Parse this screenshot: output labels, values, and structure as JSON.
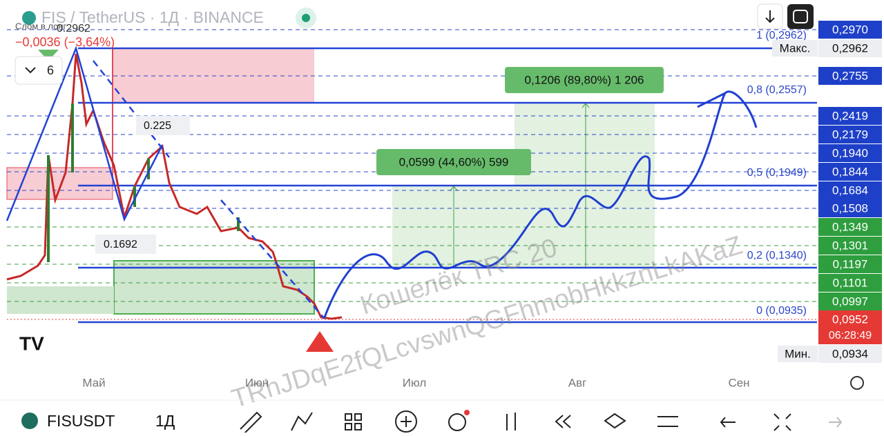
{
  "header": {
    "symbol": "FIS / TetherUS · 1Д · BINANCE",
    "note": "Слом в лонг",
    "high_label": "0.2962",
    "change": "−0,0036 (−3,64%)",
    "indicator_count": "6"
  },
  "annotations": [
    "0.225",
    "0.1692"
  ],
  "fib_levels": [
    "1 (0,2962)",
    "0,8 (0,2557)",
    "0,5 (0,1949)",
    "0,2 (0,1340)",
    "0 (0,0935)"
  ],
  "measures": [
    "0,1206 (89,80%) 1 206",
    "0,0599 (44,60%) 599"
  ],
  "price_scale": [
    "0,2970",
    "0,2755",
    "0,2419",
    "0,2179",
    "0,1940",
    "0,1844",
    "0,1684",
    "0,1508",
    "0,1349",
    "0,1301",
    "0,1197",
    "0,1101",
    "0,0997"
  ],
  "max_label": {
    "name": "Макс.",
    "price": "0,2962"
  },
  "min_label": {
    "name": "Мин.",
    "price": "0,0934"
  },
  "last_price": {
    "price": "0,0952",
    "countdown": "06:28:49"
  },
  "watermark": [
    "Кошелёк TRC 20",
    "TRhJDqE2fQLcvswnQGFhmobHkkznLkAKaZ"
  ],
  "x_axis": [
    "Май",
    "Июн",
    "Июл",
    "Авг",
    "Сен"
  ],
  "toolbar": {
    "symbol": "FISUSDT",
    "interval": "1Д"
  }
}
